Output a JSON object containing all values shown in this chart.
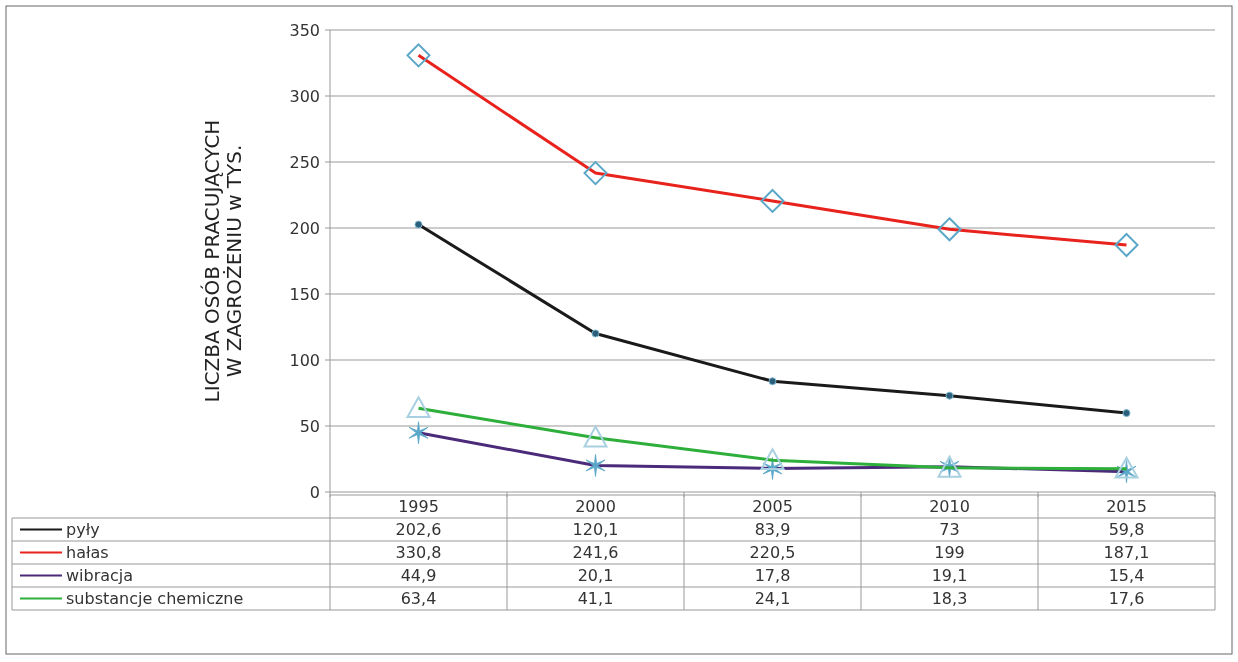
{
  "chart_data": {
    "type": "line",
    "ylabel": "LICZBA OSÓB PRACUJĄCYCH\nW ZAGROŻENIU w TYS.",
    "categories": [
      "1995",
      "2000",
      "2005",
      "2010",
      "2015"
    ],
    "series": [
      {
        "name": "pyły",
        "color": "#1a1a1a",
        "marker": "circle",
        "values": [
          202.6,
          120.1,
          83.9,
          73,
          59.8
        ],
        "value_labels": [
          "202,6",
          "120,1",
          "83,9",
          "73",
          "59,8"
        ]
      },
      {
        "name": "hałas",
        "color": "#e8221c",
        "marker": "diamond",
        "values": [
          330.8,
          241.6,
          220.5,
          199,
          187.1
        ],
        "value_labels": [
          "330,8",
          "241,6",
          "220,5",
          "199",
          "187,1"
        ]
      },
      {
        "name": "wibracja",
        "color": "#4b2a7a",
        "marker": "cross",
        "values": [
          44.9,
          20.1,
          17.8,
          19.1,
          15.4
        ],
        "value_labels": [
          "44,9",
          "20,1",
          "17,8",
          "19,1",
          "15,4"
        ]
      },
      {
        "name": "substancje chemiczne",
        "color": "#2eae3a",
        "marker": "triangle",
        "values": [
          63.4,
          41.1,
          24.1,
          18.3,
          17.6
        ],
        "value_labels": [
          "63,4",
          "41,1",
          "24,1",
          "18,3",
          "17,6"
        ]
      }
    ],
    "ylim": [
      0,
      350
    ],
    "yticks": [
      0,
      50,
      100,
      150,
      200,
      250,
      300,
      350
    ],
    "grid": "y",
    "legend": "bottom"
  }
}
